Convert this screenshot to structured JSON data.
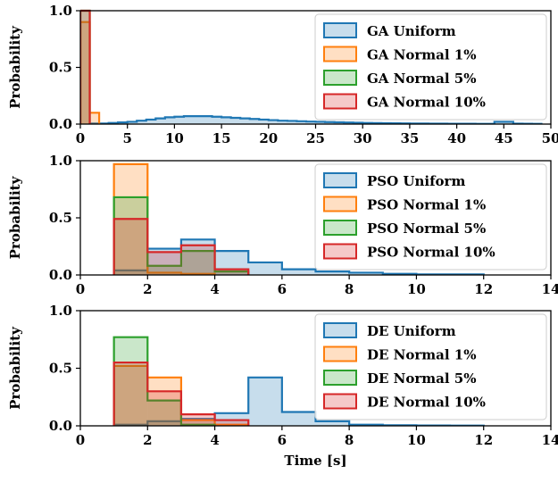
{
  "colors": {
    "blue": "#1f77b4",
    "orange": "#ff7f0e",
    "green": "#2ca02c",
    "red": "#d62728"
  },
  "chart_data": [
    {
      "type": "histogram",
      "xlim": [
        0,
        50
      ],
      "ylim": [
        0,
        1
      ],
      "xticks": [
        "0",
        "5",
        "10",
        "15",
        "20",
        "25",
        "30",
        "35",
        "40",
        "45",
        "50"
      ],
      "yticks": [
        "0.0",
        "0.5",
        "1.0"
      ],
      "ylabel": "Probability",
      "xlabel": "",
      "legend": "top-right",
      "series": [
        {
          "name": "GA Uniform",
          "bin_width": 1,
          "bins": [
            [
              1,
              0.005
            ],
            [
              2,
              0.005
            ],
            [
              3,
              0.01
            ],
            [
              4,
              0.015
            ],
            [
              5,
              0.02
            ],
            [
              6,
              0.03
            ],
            [
              7,
              0.04
            ],
            [
              8,
              0.05
            ],
            [
              9,
              0.06
            ],
            [
              10,
              0.065
            ],
            [
              11,
              0.07
            ],
            [
              12,
              0.07
            ],
            [
              13,
              0.07
            ],
            [
              14,
              0.065
            ],
            [
              15,
              0.06
            ],
            [
              16,
              0.055
            ],
            [
              17,
              0.05
            ],
            [
              18,
              0.045
            ],
            [
              19,
              0.04
            ],
            [
              20,
              0.035
            ],
            [
              21,
              0.03
            ],
            [
              22,
              0.028
            ],
            [
              23,
              0.025
            ],
            [
              24,
              0.022
            ],
            [
              25,
              0.02
            ],
            [
              26,
              0.018
            ],
            [
              27,
              0.016
            ],
            [
              28,
              0.014
            ],
            [
              29,
              0.012
            ],
            [
              30,
              0.01
            ],
            [
              31,
              0.009
            ],
            [
              32,
              0.008
            ],
            [
              33,
              0.007
            ],
            [
              34,
              0.006
            ],
            [
              35,
              0.005
            ],
            [
              36,
              0.005
            ],
            [
              37,
              0.004
            ],
            [
              38,
              0.004
            ],
            [
              39,
              0.003
            ],
            [
              40,
              0.003
            ],
            [
              41,
              0.003
            ],
            [
              42,
              0.002
            ],
            [
              43,
              0.002
            ],
            [
              44,
              0.02
            ],
            [
              45,
              0.02
            ],
            [
              46,
              0.004
            ],
            [
              47,
              0.003
            ],
            [
              48,
              0.002
            ]
          ]
        },
        {
          "name": "GA Normal 1%",
          "bin_width": 1,
          "bins": [
            [
              0,
              0.9
            ],
            [
              1,
              0.1
            ]
          ]
        },
        {
          "name": "GA Normal 5%",
          "bin_width": 1,
          "bins": [
            [
              0,
              1.0
            ]
          ]
        },
        {
          "name": "GA Normal 10%",
          "bin_width": 1,
          "bins": [
            [
              0,
              1.0
            ]
          ]
        }
      ]
    },
    {
      "type": "histogram",
      "xlim": [
        0,
        14
      ],
      "ylim": [
        0,
        1
      ],
      "xticks": [
        "0",
        "2",
        "4",
        "6",
        "8",
        "10",
        "12",
        "14"
      ],
      "yticks": [
        "0.0",
        "0.5",
        "1.0"
      ],
      "ylabel": "Probability",
      "xlabel": "",
      "legend": "top-right",
      "series": [
        {
          "name": "PSO Uniform",
          "bin_width": 1,
          "bins": [
            [
              1,
              0.04
            ],
            [
              2,
              0.23
            ],
            [
              3,
              0.31
            ],
            [
              4,
              0.21
            ],
            [
              5,
              0.11
            ],
            [
              6,
              0.05
            ],
            [
              7,
              0.03
            ],
            [
              8,
              0.02
            ],
            [
              9,
              0.01
            ],
            [
              10,
              0.005
            ],
            [
              11,
              0.005
            ]
          ]
        },
        {
          "name": "PSO Normal 1%",
          "bin_width": 1,
          "bins": [
            [
              1,
              0.97
            ],
            [
              2,
              0.02
            ],
            [
              3,
              0.01
            ]
          ]
        },
        {
          "name": "PSO Normal 5%",
          "bin_width": 1,
          "bins": [
            [
              1,
              0.68
            ],
            [
              2,
              0.08
            ],
            [
              3,
              0.21
            ],
            [
              4,
              0.03
            ]
          ]
        },
        {
          "name": "PSO Normal 10%",
          "bin_width": 1,
          "bins": [
            [
              1,
              0.49
            ],
            [
              2,
              0.2
            ],
            [
              3,
              0.26
            ],
            [
              4,
              0.05
            ]
          ]
        }
      ]
    },
    {
      "type": "histogram",
      "xlim": [
        0,
        14
      ],
      "ylim": [
        0,
        1
      ],
      "xticks": [
        "0",
        "2",
        "4",
        "6",
        "8",
        "10",
        "12",
        "14"
      ],
      "yticks": [
        "0.0",
        "0.5",
        "1.0"
      ],
      "ylabel": "Probability",
      "xlabel": "Time [s]",
      "legend": "top-right",
      "series": [
        {
          "name": "DE Uniform",
          "bin_width": 1,
          "bins": [
            [
              1,
              0.01
            ],
            [
              2,
              0.04
            ],
            [
              3,
              0.06
            ],
            [
              4,
              0.11
            ],
            [
              5,
              0.42
            ],
            [
              6,
              0.12
            ],
            [
              7,
              0.04
            ],
            [
              8,
              0.01
            ],
            [
              9,
              0.005
            ],
            [
              10,
              0.003
            ],
            [
              11,
              0.002
            ]
          ]
        },
        {
          "name": "DE Normal 1%",
          "bin_width": 1,
          "bins": [
            [
              1,
              0.52
            ],
            [
              2,
              0.42
            ],
            [
              3,
              0.05
            ],
            [
              4,
              0.01
            ]
          ]
        },
        {
          "name": "DE Normal 5%",
          "bin_width": 1,
          "bins": [
            [
              1,
              0.77
            ],
            [
              2,
              0.22
            ],
            [
              3,
              0.01
            ]
          ]
        },
        {
          "name": "DE Normal 10%",
          "bin_width": 1,
          "bins": [
            [
              1,
              0.55
            ],
            [
              2,
              0.3
            ],
            [
              3,
              0.1
            ],
            [
              4,
              0.05
            ]
          ]
        }
      ]
    }
  ]
}
